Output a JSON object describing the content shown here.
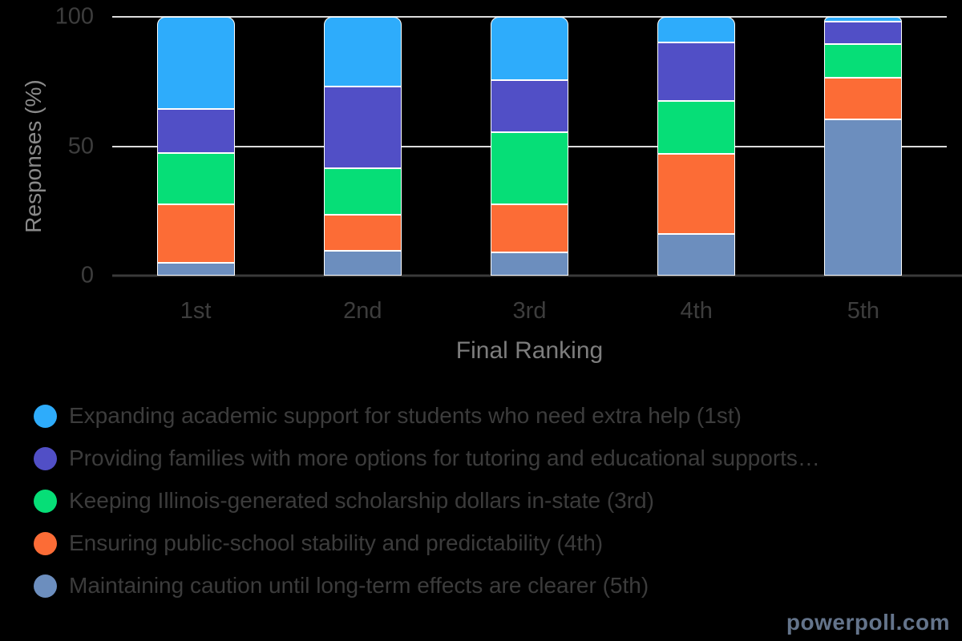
{
  "chart_data": {
    "type": "bar",
    "subtype": "stacked-percent",
    "categories": [
      "1st",
      "2nd",
      "3rd",
      "4th",
      "5th"
    ],
    "series": [
      {
        "name": "Maintaining caution until long-term effects are clearer (5th)",
        "color": "#6C8EBE",
        "values": [
          5,
          9.5,
          9,
          16,
          60.5
        ]
      },
      {
        "name": "Ensuring public-school stability and predictability (4th)",
        "color": "#FC6C36",
        "values": [
          22.5,
          14,
          18.5,
          31,
          16
        ]
      },
      {
        "name": "Keeping Illinois-generated scholarship dollars in-state (3rd)",
        "color": "#06DE77",
        "values": [
          20,
          18,
          28,
          20.5,
          13
        ]
      },
      {
        "name": "Providing families with more options for tutoring and educational supports…",
        "color": "#514FC6",
        "values": [
          17,
          31.5,
          20,
          22.5,
          8.5
        ]
      },
      {
        "name": "Expanding academic support for students who need extra help (1st)",
        "color": "#2EACFB",
        "values": [
          35.5,
          27,
          24.5,
          10,
          2
        ]
      }
    ],
    "stack_order": "first-series-at-bottom",
    "title": "",
    "xlabel": "Final Ranking",
    "ylabel": "Responses (%)",
    "ylim": [
      0,
      100
    ],
    "y_ticks": [
      0,
      50,
      100
    ],
    "grid": "horizontal",
    "gridline_color": "#DCDCDC",
    "axis_line_color": "#3A3A3A",
    "background_color": "#000000",
    "legend_position": "bottom-left",
    "legend_order": "reverse-of-stack"
  },
  "footer": {
    "brand": "powerpoll.com",
    "brand_color": "#64748B"
  }
}
